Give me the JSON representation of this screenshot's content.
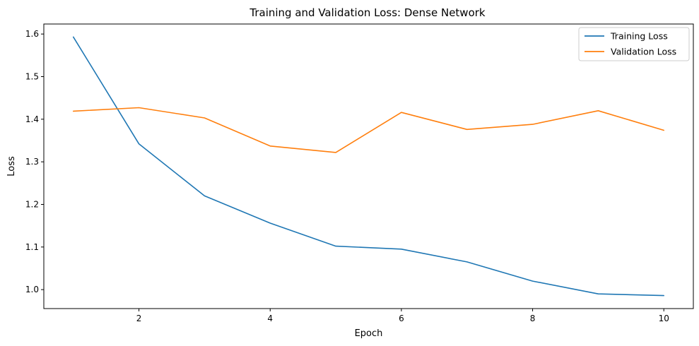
{
  "chart_data": {
    "type": "line",
    "title": "Training and Validation Loss: Dense Network",
    "xlabel": "Epoch",
    "ylabel": "Loss",
    "x": [
      1,
      2,
      3,
      4,
      5,
      6,
      7,
      8,
      9,
      10
    ],
    "series": [
      {
        "name": "Training Loss",
        "color": "#1f77b4",
        "values": [
          1.593,
          1.342,
          1.22,
          1.156,
          1.102,
          1.095,
          1.065,
          1.02,
          0.99,
          0.986
        ]
      },
      {
        "name": "Validation Loss",
        "color": "#ff7f0e",
        "values": [
          1.419,
          1.427,
          1.403,
          1.337,
          1.322,
          1.416,
          1.376,
          1.388,
          1.42,
          1.374
        ]
      }
    ],
    "xlim": [
      0.55,
      10.45
    ],
    "ylim": [
      0.9555,
      1.6235
    ],
    "xticks": [
      2,
      4,
      6,
      8,
      10
    ],
    "xtick_labels": [
      "2",
      "4",
      "6",
      "8",
      "10"
    ],
    "yticks": [
      1.0,
      1.1,
      1.2,
      1.3,
      1.4,
      1.5,
      1.6
    ],
    "ytick_labels": [
      "1.0",
      "1.1",
      "1.2",
      "1.3",
      "1.4",
      "1.5",
      "1.6"
    ],
    "grid": false,
    "legend_position": "top-right"
  }
}
